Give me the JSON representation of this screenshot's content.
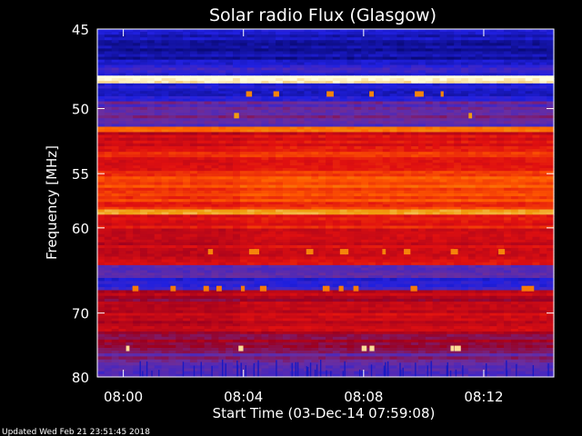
{
  "chart_data": {
    "type": "heatmap",
    "title": "Solar radio Flux (Glasgow)",
    "xlabel": "Start Time (03-Dec-14 07:59:08)",
    "ylabel": "Frequency [MHz]",
    "x_ticks": [
      "08:00",
      "08:04",
      "08:08",
      "08:12"
    ],
    "x_tick_minutes": [
      0.8667,
      4.8667,
      8.8667,
      12.8667
    ],
    "xlim_minutes_after_start": [
      0,
      15.2
    ],
    "y_ticks": [
      45,
      50,
      55,
      60,
      70,
      80
    ],
    "y_scale": "reciprocal",
    "ylim": [
      45,
      80
    ],
    "grid": false,
    "colormap": [
      "#0a0a7a",
      "#2020e0",
      "#6a2ea0",
      "#9a0020",
      "#e01010",
      "#ff5a00",
      "#f0a010",
      "#ffffe0"
    ],
    "bands": [
      {
        "f0": 45.0,
        "f1": 46.8,
        "level": 0.08
      },
      {
        "f0": 46.8,
        "f1": 47.8,
        "level": 0.15
      },
      {
        "f0": 47.8,
        "f1": 48.3,
        "level": 0.98
      },
      {
        "f0": 48.3,
        "f1": 49.5,
        "level": 0.12
      },
      {
        "f0": 49.5,
        "f1": 51.3,
        "level": 0.28
      },
      {
        "f0": 51.3,
        "f1": 51.7,
        "level": 0.75
      },
      {
        "f0": 51.7,
        "f1": 53.0,
        "level": 0.52
      },
      {
        "f0": 53.0,
        "f1": 55.0,
        "level": 0.6
      },
      {
        "f0": 55.0,
        "f1": 57.5,
        "level": 0.66
      },
      {
        "f0": 57.5,
        "f1": 58.2,
        "level": 0.62
      },
      {
        "f0": 58.2,
        "f1": 58.7,
        "level": 0.86
      },
      {
        "f0": 58.7,
        "f1": 61.5,
        "level": 0.55
      },
      {
        "f0": 61.5,
        "f1": 64.0,
        "level": 0.5
      },
      {
        "f0": 64.0,
        "f1": 65.5,
        "level": 0.3
      },
      {
        "f0": 65.5,
        "f1": 67.0,
        "level": 0.17
      },
      {
        "f0": 67.0,
        "f1": 70.0,
        "level": 0.45
      },
      {
        "f0": 70.0,
        "f1": 73.0,
        "level": 0.48
      },
      {
        "f0": 73.0,
        "f1": 76.0,
        "level": 0.4
      },
      {
        "f0": 76.0,
        "f1": 78.0,
        "level": 0.32
      },
      {
        "f0": 78.0,
        "f1": 80.0,
        "level": 0.27
      }
    ]
  },
  "footer": {
    "updated": "Updated Wed Feb 21 23:51:45 2018"
  }
}
